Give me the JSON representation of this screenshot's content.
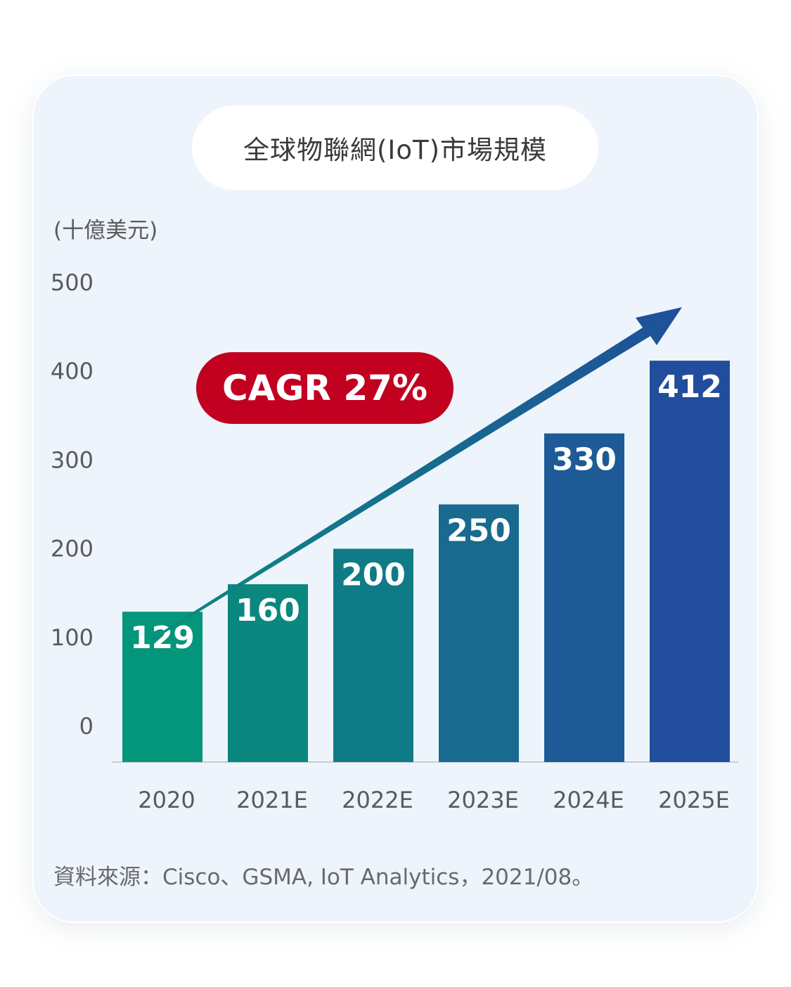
{
  "chart_data": {
    "type": "bar",
    "title": "全球物聯網(IoT)市場規模",
    "unit_label": "(十億美元)",
    "categories": [
      "2020",
      "2021E",
      "2022E",
      "2023E",
      "2024E",
      "2025E"
    ],
    "values": [
      129,
      160,
      200,
      250,
      330,
      412
    ],
    "value_labels": [
      "129",
      "160",
      "200",
      "250",
      "330",
      "412"
    ],
    "yticks": [
      "500",
      "400",
      "300",
      "200",
      "100",
      "0"
    ],
    "bar_colors": [
      "#04967a",
      "#0a877f",
      "#0f7b86",
      "#186a8e",
      "#1e5a96",
      "#224d9c"
    ],
    "arrow_colors": {
      "start": "#0d8a80",
      "end": "#1f4f9a"
    },
    "annotation": "CAGR 27%",
    "annotation_color": "#c20020",
    "source": "資料來源：Cisco、GSMA, IoT Analytics，2021/08。",
    "grid": false
  }
}
